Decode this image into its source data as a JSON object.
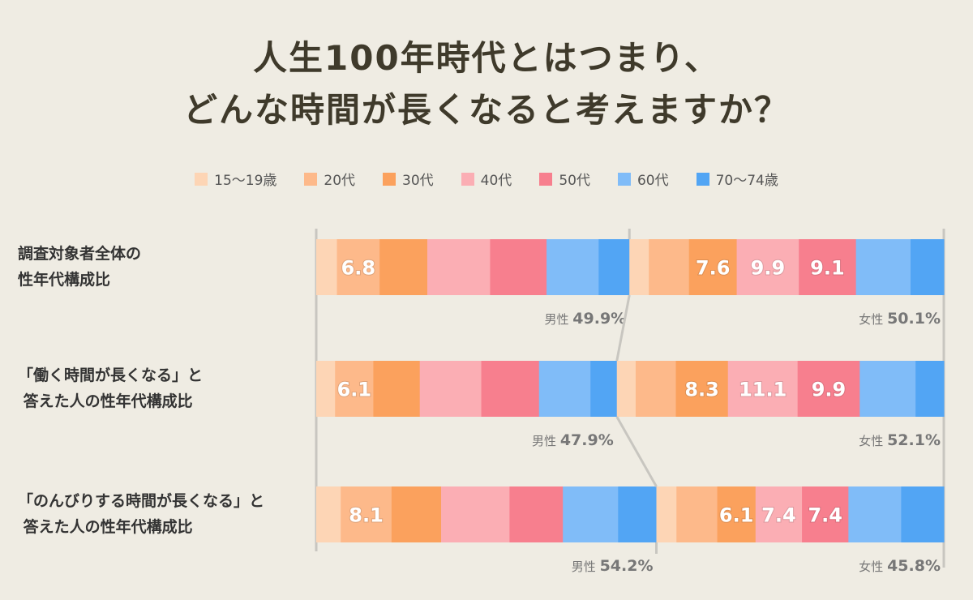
{
  "chart_data": {
    "type": "stacked-bar",
    "title": "人生100年時代とはつまり、\nどんな時間が長くなると考えますか？",
    "legend": [
      "15〜19歳",
      "20代",
      "30代",
      "40代",
      "50代",
      "60代",
      "70〜74歳"
    ],
    "colors": [
      "#fdd5b5",
      "#fdb98a",
      "#fba15d",
      "#fbaeb4",
      "#f77f8e",
      "#80bcf8",
      "#52a5f4"
    ],
    "rows": [
      {
        "label": "調査対象者全体の\n性年代構成比",
        "male": {
          "label": "男性",
          "total": "49.9%",
          "values": [
            3.3,
            6.8,
            7.6,
            10.0,
            9.0,
            8.3,
            4.9
          ],
          "shown": [
            1
          ]
        },
        "female": {
          "label": "女性",
          "total": "50.1%",
          "values": [
            3.1,
            6.4,
            7.6,
            9.9,
            9.1,
            8.7,
            5.3
          ],
          "shown": [
            2,
            3,
            4
          ]
        }
      },
      {
        "label": "「働く時間が長くなる」と\n 答えた人の性年代構成比",
        "male": {
          "label": "男性",
          "total": "47.9%",
          "values": [
            3.0,
            6.1,
            7.4,
            9.8,
            9.2,
            8.2,
            4.2
          ],
          "shown": [
            1
          ]
        },
        "female": {
          "label": "女性",
          "total": "52.1%",
          "values": [
            3.0,
            6.4,
            8.3,
            11.1,
            9.9,
            8.9,
            4.5
          ],
          "shown": [
            2,
            3,
            4
          ]
        }
      },
      {
        "label": "「のんびりする時間が長くなる」と\n 答えた人の性年代構成比",
        "male": {
          "label": "男性",
          "total": "54.2%",
          "values": [
            3.9,
            8.1,
            7.9,
            10.9,
            8.5,
            8.8,
            6.1
          ],
          "shown": [
            1
          ]
        },
        "female": {
          "label": "女性",
          "total": "45.8%",
          "values": [
            3.2,
            6.5,
            6.1,
            7.4,
            7.4,
            8.4,
            6.8
          ],
          "shown": [
            2,
            3,
            4
          ]
        }
      }
    ],
    "xlim": [
      0,
      100
    ]
  }
}
